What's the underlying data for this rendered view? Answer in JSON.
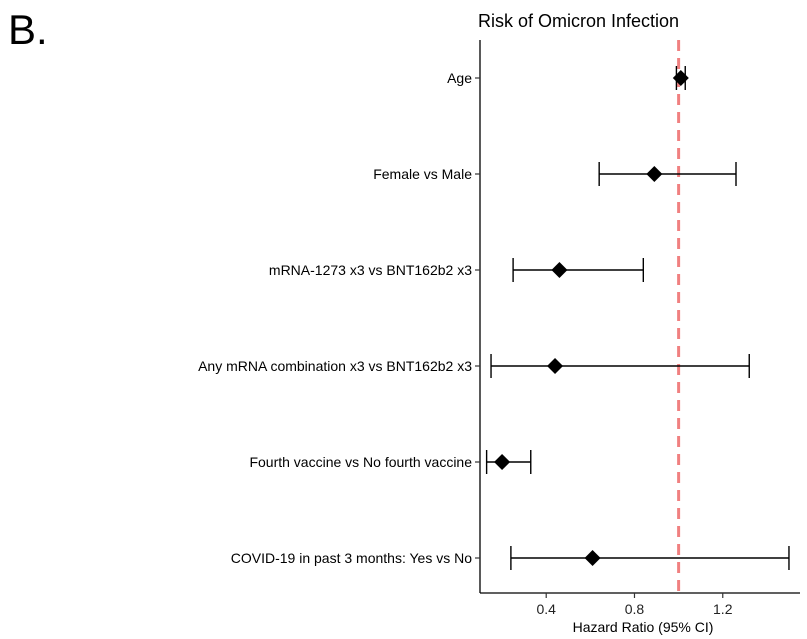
{
  "panel_label": "B.",
  "chart_data": {
    "type": "forest",
    "title": "Risk of Omicron Infection",
    "xlabel": "Hazard Ratio (95% CI)",
    "ylabel": "",
    "xlim": [
      0.1,
      1.55
    ],
    "xticks": [
      0.4,
      0.8,
      1.2
    ],
    "xtick_labels": [
      "0.4",
      "0.8",
      "1.2"
    ],
    "reference_line": {
      "x": 1.0,
      "color": "#f08080",
      "style": "dashed"
    },
    "grid": false,
    "categories": [
      "Age",
      "Female vs Male",
      "mRNA-1273 x3 vs BNT162b2 x3",
      "Any mRNA combination x3 vs BNT162b2 x3",
      "Fourth vaccine vs No fourth vaccine",
      "COVID-19 in past 3 months: Yes vs No"
    ],
    "estimates": [
      1.01,
      0.89,
      0.46,
      0.44,
      0.2,
      0.61
    ],
    "lower": [
      0.99,
      0.64,
      0.25,
      0.15,
      0.13,
      0.24
    ],
    "upper": [
      1.03,
      1.26,
      0.84,
      1.32,
      0.33,
      1.5
    ],
    "marker": "diamond",
    "marker_color": "#000000"
  }
}
